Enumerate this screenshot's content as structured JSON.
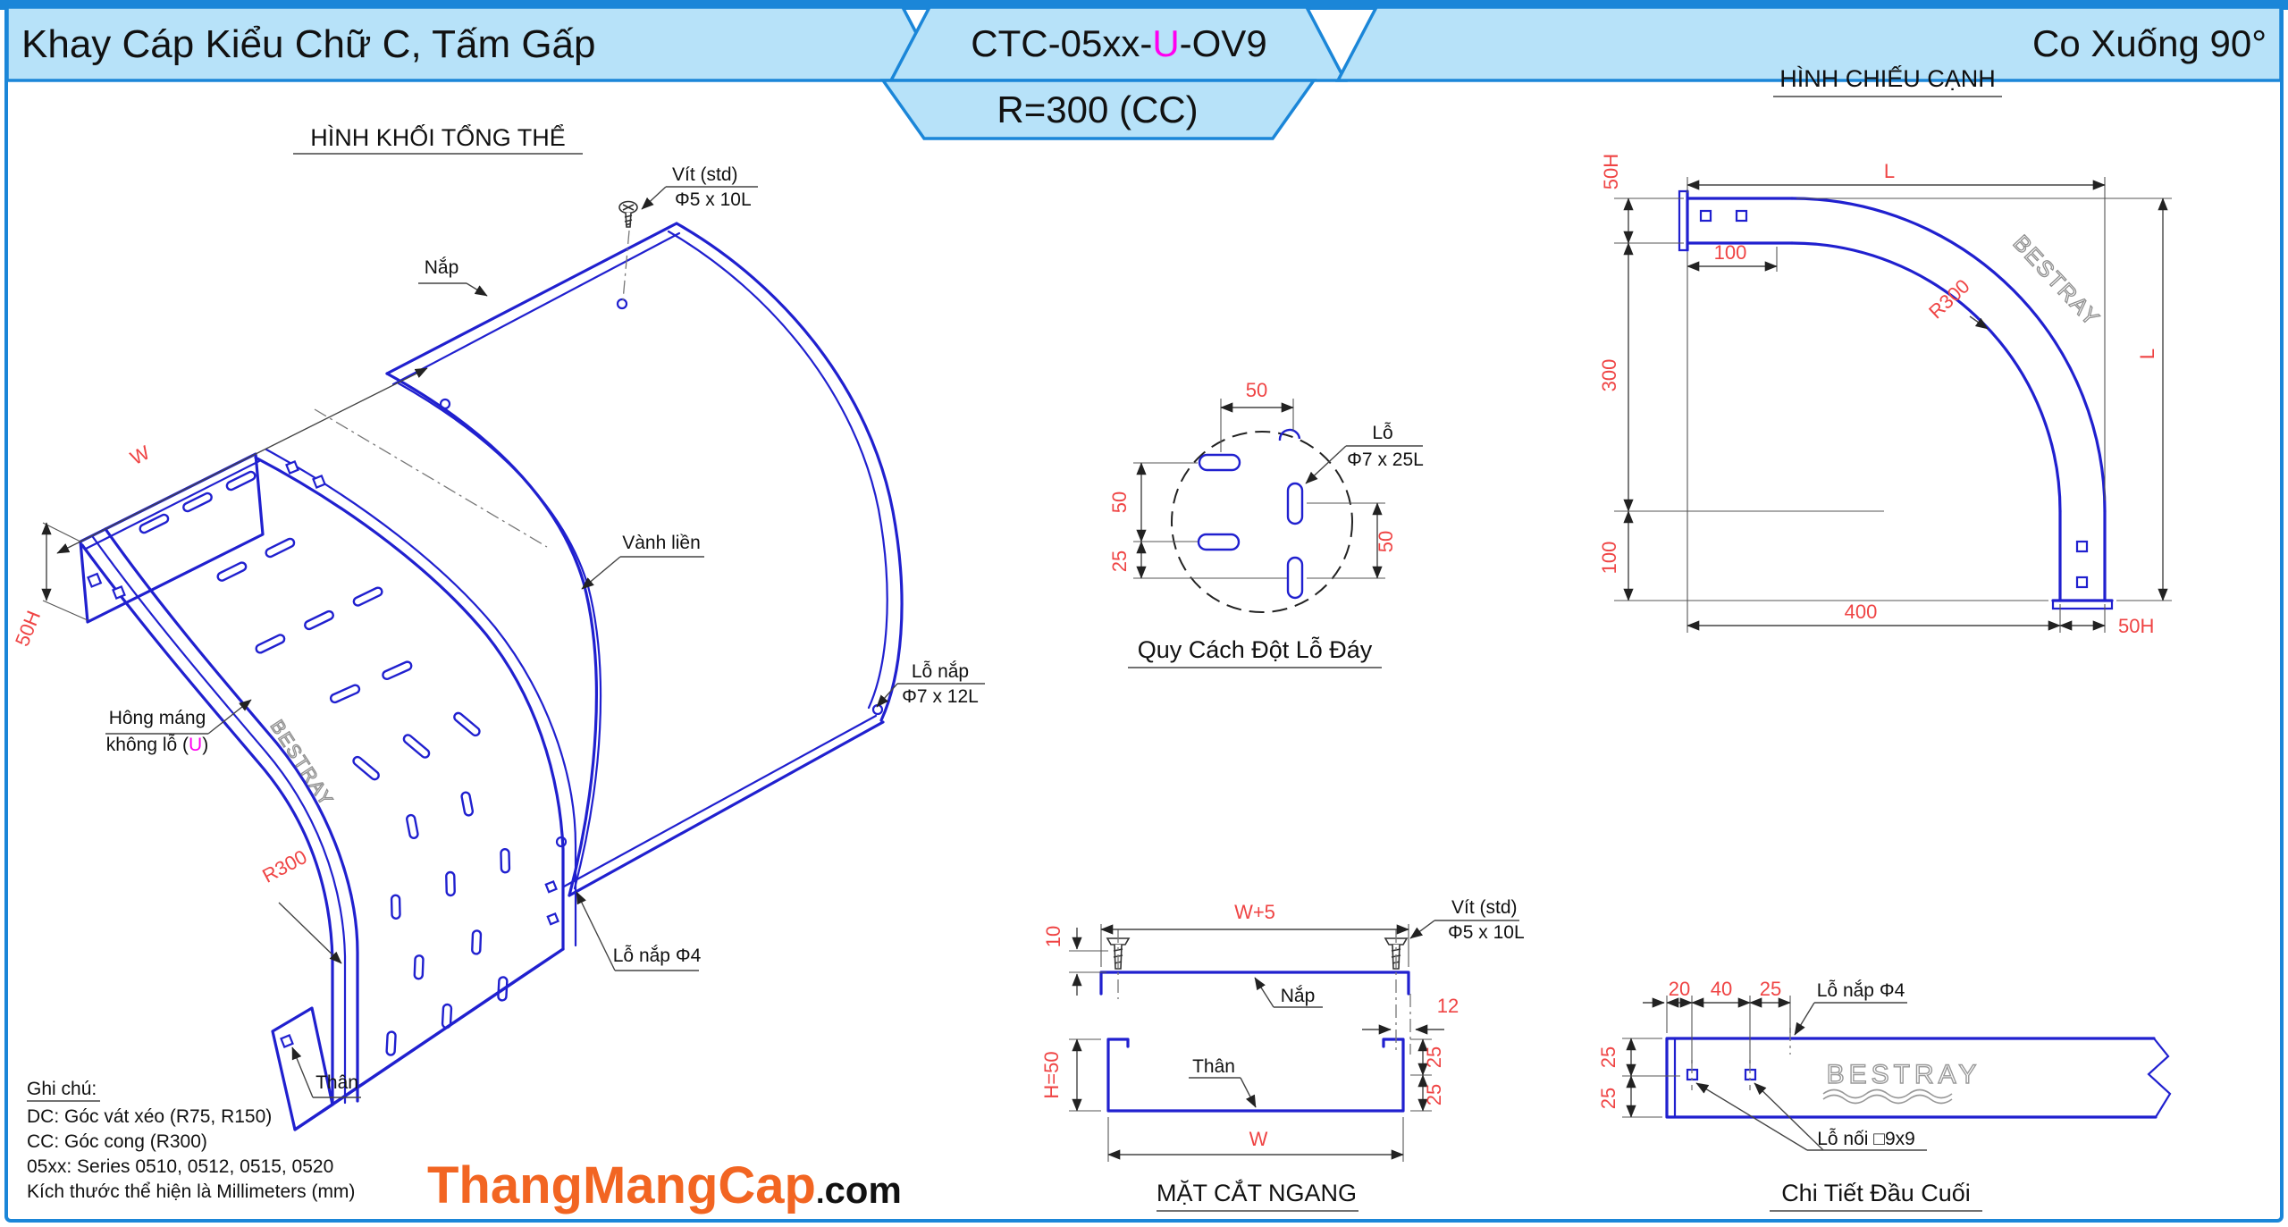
{
  "header": {
    "left_title": "Khay Cáp Kiểu Chữ C, Tấm Gấp",
    "code_prefix": "CTC-05xx-",
    "code_accent": "U",
    "code_suffix": "-OV9",
    "radius_label": "R=300 (CC)",
    "right_title": "Co Xuống 90°"
  },
  "iso": {
    "title": "HÌNH KHỐI TỔNG THỂ",
    "screw_label_1": "Vít (std)",
    "screw_label_2": "Φ5 x 10L",
    "cover_label": "Nắp",
    "rim_label": "Vành liền",
    "cover_hole_label_1": "Lỗ nắp",
    "cover_hole_label_2": "Φ7 x 12L",
    "side_label_1": "Hông máng",
    "side_label_2a": "không lỗ (",
    "side_label_2b": "U",
    "side_label_2c": ")",
    "body_label": "Thân",
    "cap_hole_label": "Lỗ nắp Φ4",
    "brand": "BESTRAY",
    "dim_w": "W",
    "dim_h": "50H",
    "dim_r": "R300"
  },
  "punch": {
    "title": "Quy Cách Đột Lỗ Đáy",
    "hole_label_1": "Lỗ",
    "hole_label_2": "Φ7 x 25L",
    "dim_top": "50",
    "dim_left_upper": "50",
    "dim_left_lower": "25",
    "dim_right": "50"
  },
  "side": {
    "title": "HÌNH CHIẾU CẠNH",
    "brand": "BESTRAY",
    "dim_h_top": "50H",
    "dim_l_top": "L",
    "dim_100_top": "100",
    "dim_300": "300",
    "dim_100_left": "100",
    "dim_400": "400",
    "dim_h_bottom": "50H",
    "dim_l_right": "L",
    "dim_r": "R300"
  },
  "section": {
    "title": "MẶT CẮT NGANG",
    "dim_w5": "W+5",
    "dim_10": "10",
    "screw_label_1": "Vít (std)",
    "screw_label_2": "Φ5 x 10L",
    "cover_label": "Nắp",
    "dim_12": "12",
    "dim_h50": "H=50",
    "body_label": "Thân",
    "dim_25a": "25",
    "dim_25b": "25",
    "dim_w": "W"
  },
  "end_detail": {
    "title": "Chi Tiết Đầu Cuối",
    "dim_20": "20",
    "dim_40": "40",
    "dim_25_top": "25",
    "cap_hole_label": "Lỗ nắp Φ4",
    "dim_25_left_a": "25",
    "dim_25_left_b": "25",
    "brand": "BESTRAY",
    "joint_hole_label": "Lỗ nối □9x9"
  },
  "notes": {
    "heading": "Ghi chú:",
    "line1": "DC: Góc vát xéo (R75, R150)",
    "line2": "CC: Góc cong (R300)",
    "line3": "05xx: Series 0510, 0512, 0515, 0520",
    "line4": "Kích thước thể hiện là Millimeters (mm)"
  },
  "logo": {
    "main": "ThangMangCap",
    "dot": ".",
    "tld": "com"
  },
  "colors": {
    "banner_fill": "#b7e2f9",
    "banner_border": "#1b86d8",
    "line_blue": "#2020cf",
    "dim_red": "#ef4444",
    "accent_magenta": "#ff00f0",
    "logo_orange": "#f26522"
  }
}
